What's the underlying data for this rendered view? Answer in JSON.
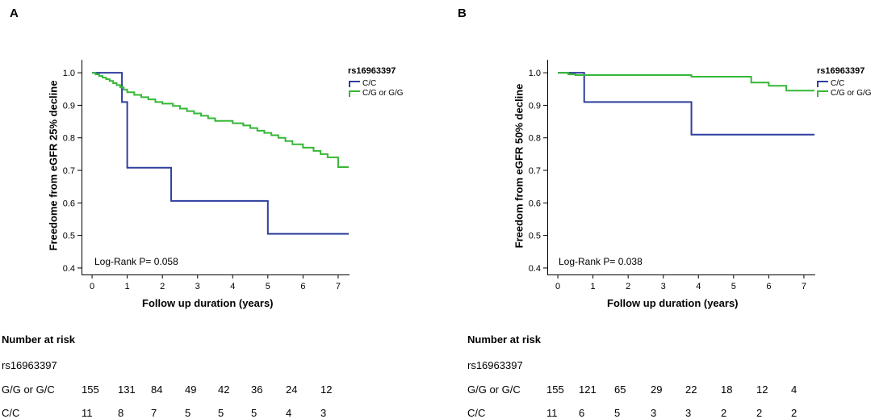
{
  "chart_data": [
    {
      "panel": "A",
      "type": "line",
      "xlabel": "Follow up duration (years)",
      "ylabel": "Freedome from eGFR 25% decline",
      "xlim": [
        -0.3,
        7.3
      ],
      "ylim": [
        0.38,
        1.04
      ],
      "xticks": [
        0,
        1,
        2,
        3,
        4,
        5,
        6,
        7
      ],
      "yticks": [
        0.4,
        0.5,
        0.6,
        0.7,
        0.8,
        0.9,
        1.0
      ],
      "ytick_labels": [
        "0.4",
        "0.5",
        "0.6",
        "0.7",
        "0.8",
        "0.9",
        "1.0"
      ],
      "annotation": "Log-Rank P= 0.058",
      "legend_title": "rs16963397",
      "series": [
        {
          "name": "C/C",
          "color": "#2e3f9e",
          "step": true,
          "x": [
            0,
            0.85,
            0.85,
            1.0,
            1.0,
            2.25,
            2.25,
            5.0,
            5.0,
            7.3
          ],
          "y": [
            1.0,
            1.0,
            0.91,
            0.91,
            0.708,
            0.708,
            0.606,
            0.606,
            0.505,
            0.505
          ]
        },
        {
          "name": "C/G or G/G",
          "color": "#35b736",
          "step": true,
          "x": [
            0,
            0.1,
            0.2,
            0.3,
            0.4,
            0.5,
            0.6,
            0.7,
            0.8,
            0.9,
            1.0,
            1.2,
            1.4,
            1.6,
            1.8,
            2.0,
            2.3,
            2.5,
            2.7,
            2.9,
            3.1,
            3.3,
            3.5,
            4.0,
            4.3,
            4.5,
            4.7,
            4.9,
            5.1,
            5.3,
            5.5,
            5.7,
            6.0,
            6.3,
            6.5,
            6.7,
            7.0,
            7.3
          ],
          "y": [
            1.0,
            0.995,
            0.99,
            0.985,
            0.98,
            0.975,
            0.968,
            0.962,
            0.955,
            0.948,
            0.94,
            0.932,
            0.925,
            0.918,
            0.91,
            0.905,
            0.898,
            0.89,
            0.882,
            0.875,
            0.868,
            0.86,
            0.852,
            0.845,
            0.838,
            0.83,
            0.822,
            0.815,
            0.808,
            0.8,
            0.79,
            0.78,
            0.77,
            0.76,
            0.75,
            0.74,
            0.71,
            0.71
          ]
        }
      ]
    },
    {
      "panel": "B",
      "type": "line",
      "xlabel": "Follow up duration (years)",
      "ylabel": "Freedom from eGFR 50% decline",
      "xlim": [
        -0.3,
        7.3
      ],
      "ylim": [
        0.38,
        1.04
      ],
      "xticks": [
        0,
        1,
        2,
        3,
        4,
        5,
        6,
        7
      ],
      "yticks": [
        0.4,
        0.5,
        0.6,
        0.7,
        0.8,
        0.9,
        1.0
      ],
      "ytick_labels": [
        "0.4",
        "0.5",
        "0.6",
        "0.7",
        "0.8",
        "0.9",
        "1.0"
      ],
      "annotation": "Log-Rank P= 0.038",
      "legend_title": "rs16963397",
      "series": [
        {
          "name": "C/C",
          "color": "#2e3f9e",
          "step": true,
          "x": [
            0,
            0.75,
            0.75,
            3.8,
            3.8,
            7.3
          ],
          "y": [
            1.0,
            1.0,
            0.91,
            0.91,
            0.81,
            0.81
          ]
        },
        {
          "name": "C/G or G/G",
          "color": "#35b736",
          "step": true,
          "x": [
            0,
            0.3,
            0.5,
            3.8,
            5.5,
            6.0,
            6.5,
            7.3
          ],
          "y": [
            1.0,
            0.995,
            0.993,
            0.988,
            0.97,
            0.96,
            0.945,
            0.945
          ]
        }
      ]
    }
  ],
  "risk_tables": [
    {
      "panel": "A",
      "title": "Number at risk",
      "group_label": "rs16963397",
      "rows": [
        {
          "label": "G/G or G/C",
          "values": [
            "155",
            "131",
            "84",
            "49",
            "42",
            "36",
            "24",
            "12"
          ]
        },
        {
          "label": "C/C",
          "values": [
            "11",
            "8",
            "7",
            "5",
            "5",
            "5",
            "4",
            "3"
          ]
        }
      ]
    },
    {
      "panel": "B",
      "title": "Number at risk",
      "group_label": "rs16963397",
      "rows": [
        {
          "label": "G/G or G/C",
          "values": [
            "155",
            "121",
            "65",
            "29",
            "22",
            "18",
            "12",
            "4"
          ]
        },
        {
          "label": "C/C",
          "values": [
            "11",
            "6",
            "5",
            "3",
            "3",
            "2",
            "2",
            "2"
          ]
        }
      ]
    }
  ]
}
